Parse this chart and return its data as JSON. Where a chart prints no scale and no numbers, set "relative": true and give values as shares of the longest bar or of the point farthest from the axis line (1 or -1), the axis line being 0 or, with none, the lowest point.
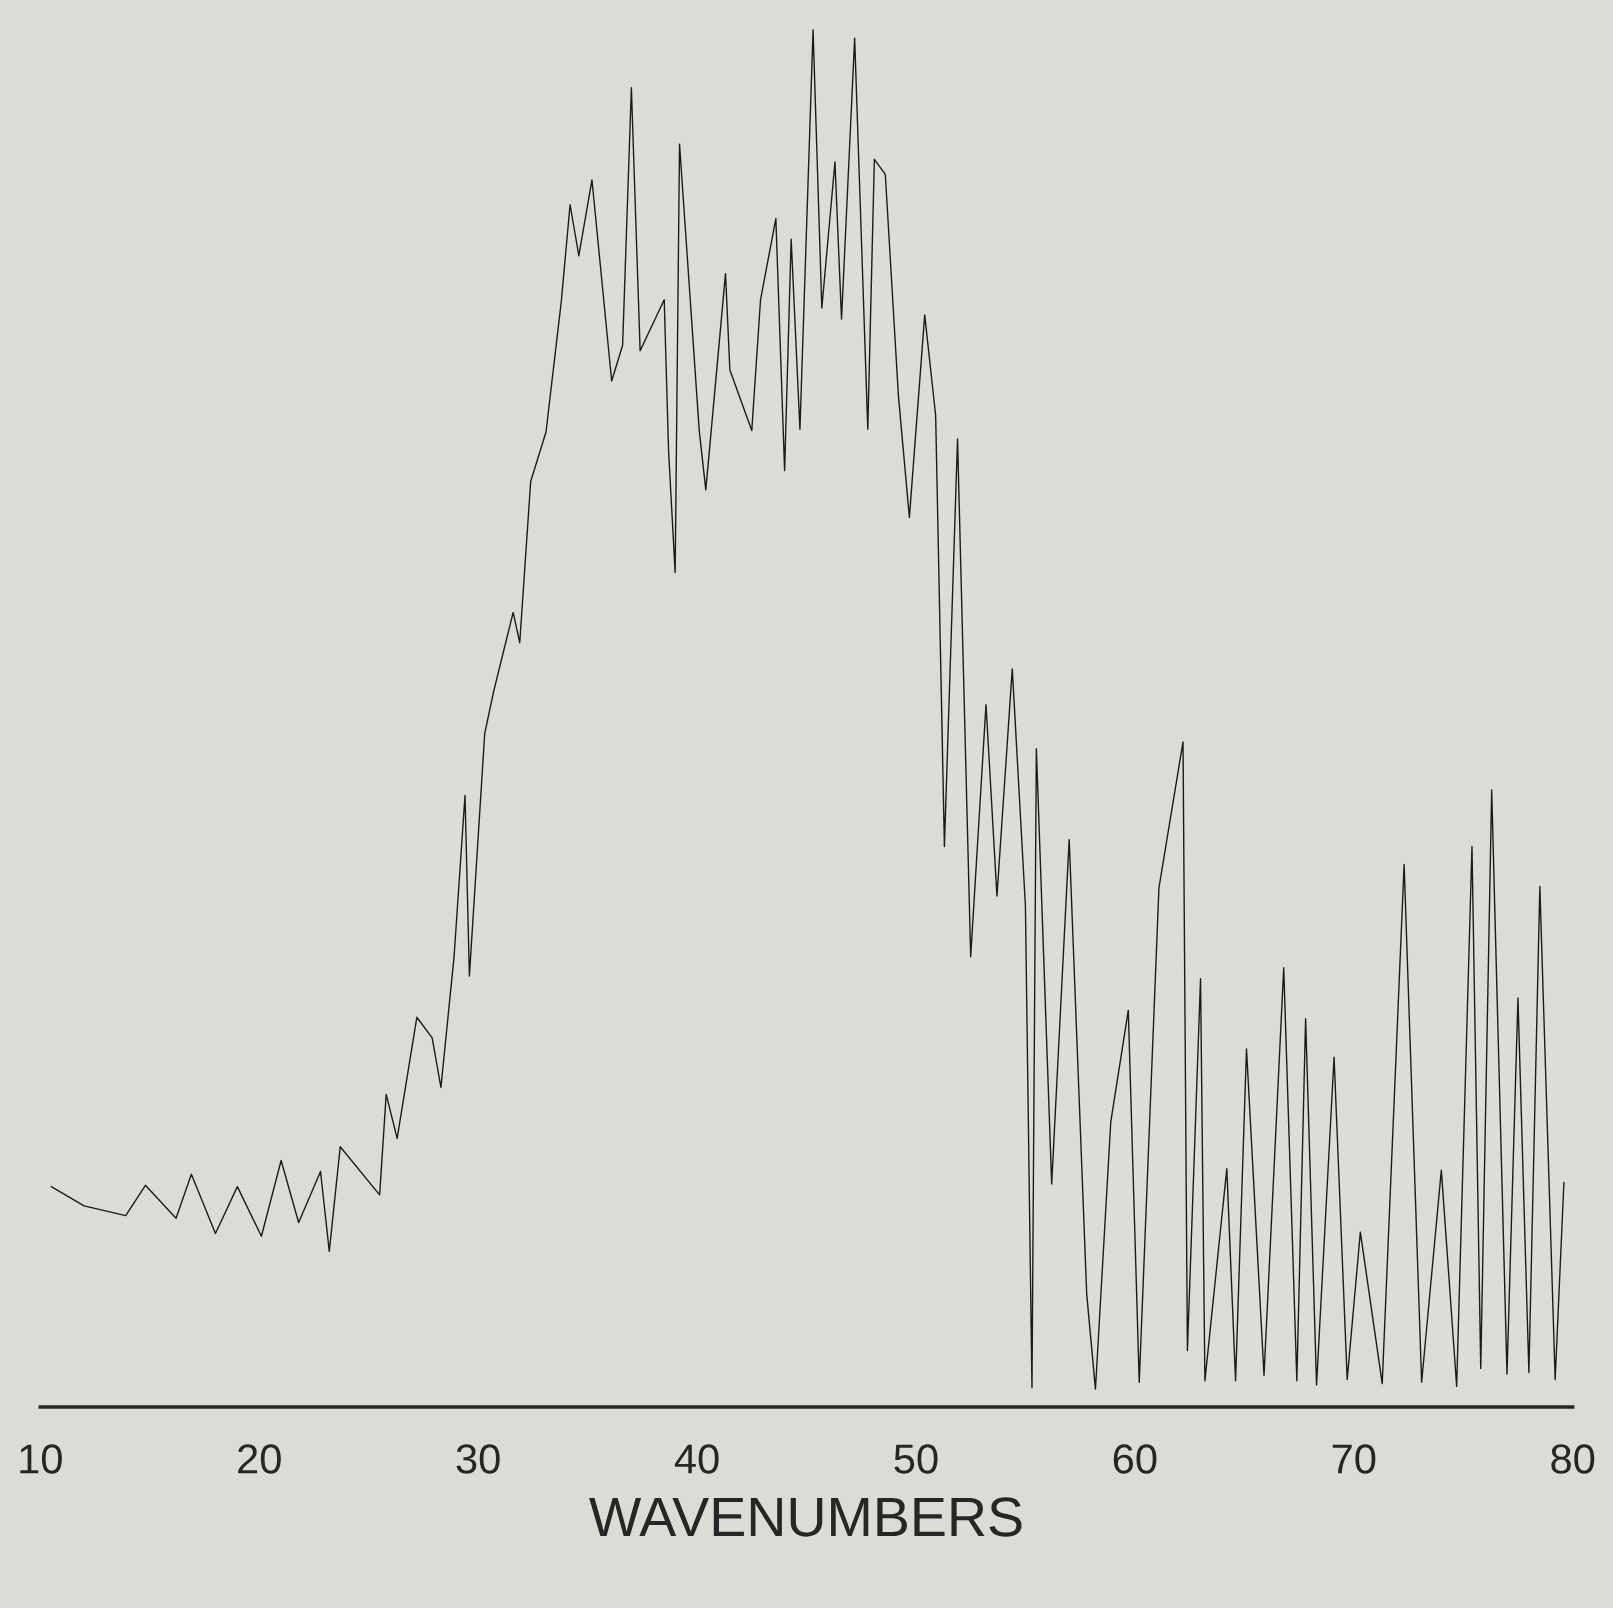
{
  "chart_data": {
    "type": "line",
    "xlabel": "WAVENUMBERS",
    "relative": true,
    "xlim": [
      10,
      80
    ],
    "xticks": [
      10,
      20,
      30,
      40,
      50,
      60,
      70,
      80
    ],
    "tick_labels": "x",
    "grid": false,
    "legend": false,
    "marker": "none",
    "line_style": "solid",
    "series": [
      {
        "color": "#1a1a1a",
        "x": [
          10.5,
          12.0,
          13.9,
          14.8,
          16.2,
          16.9,
          18.0,
          19.0,
          20.1,
          21.0,
          21.8,
          22.8,
          23.2,
          23.7,
          25.5,
          25.8,
          26.3,
          27.2,
          27.9,
          28.3,
          28.9,
          29.4,
          29.6,
          30.3,
          30.7,
          31.6,
          31.9,
          32.4,
          33.1,
          33.8,
          34.2,
          34.6,
          35.2,
          36.1,
          36.6,
          37.0,
          37.4,
          38.5,
          38.7,
          39.0,
          39.2,
          40.1,
          40.4,
          41.3,
          41.5,
          42.5,
          42.9,
          43.6,
          44.0,
          44.3,
          44.7,
          45.3,
          45.7,
          46.3,
          46.6,
          47.2,
          47.8,
          48.1,
          48.6,
          49.2,
          49.7,
          50.4,
          50.9,
          51.3,
          51.9,
          52.5,
          53.2,
          53.7,
          54.4,
          55.0,
          55.3,
          55.5,
          56.2,
          57.0,
          57.8,
          58.2,
          58.9,
          59.7,
          60.2,
          61.1,
          62.2,
          62.4,
          63.0,
          63.2,
          64.2,
          64.6,
          65.1,
          65.9,
          66.8,
          67.4,
          67.8,
          68.3,
          69.1,
          69.7,
          70.3,
          71.3,
          72.3,
          73.1,
          74.0,
          74.7,
          75.4,
          75.8,
          76.3,
          77.0,
          77.5,
          78.0,
          78.5,
          78.9,
          79.2,
          79.6
        ],
        "values": [
          0.16,
          0.146,
          0.139,
          0.161,
          0.137,
          0.169,
          0.126,
          0.16,
          0.124,
          0.179,
          0.134,
          0.171,
          0.113,
          0.189,
          0.154,
          0.227,
          0.195,
          0.283,
          0.268,
          0.232,
          0.327,
          0.444,
          0.313,
          0.489,
          0.519,
          0.577,
          0.555,
          0.672,
          0.708,
          0.803,
          0.873,
          0.836,
          0.891,
          0.745,
          0.771,
          0.958,
          0.767,
          0.804,
          0.694,
          0.606,
          0.917,
          0.709,
          0.666,
          0.823,
          0.753,
          0.709,
          0.804,
          0.863,
          0.68,
          0.848,
          0.71,
          1.0,
          0.798,
          0.904,
          0.79,
          0.994,
          0.71,
          0.906,
          0.895,
          0.734,
          0.646,
          0.793,
          0.72,
          0.407,
          0.703,
          0.327,
          0.51,
          0.371,
          0.536,
          0.364,
          0.014,
          0.478,
          0.162,
          0.412,
          0.082,
          0.013,
          0.207,
          0.288,
          0.018,
          0.377,
          0.483,
          0.041,
          0.311,
          0.019,
          0.173,
          0.019,
          0.26,
          0.023,
          0.319,
          0.019,
          0.282,
          0.016,
          0.254,
          0.02,
          0.127,
          0.017,
          0.394,
          0.018,
          0.172,
          0.015,
          0.407,
          0.028,
          0.448,
          0.024,
          0.297,
          0.025,
          0.378,
          0.174,
          0.02,
          0.163
        ]
      }
    ]
  }
}
